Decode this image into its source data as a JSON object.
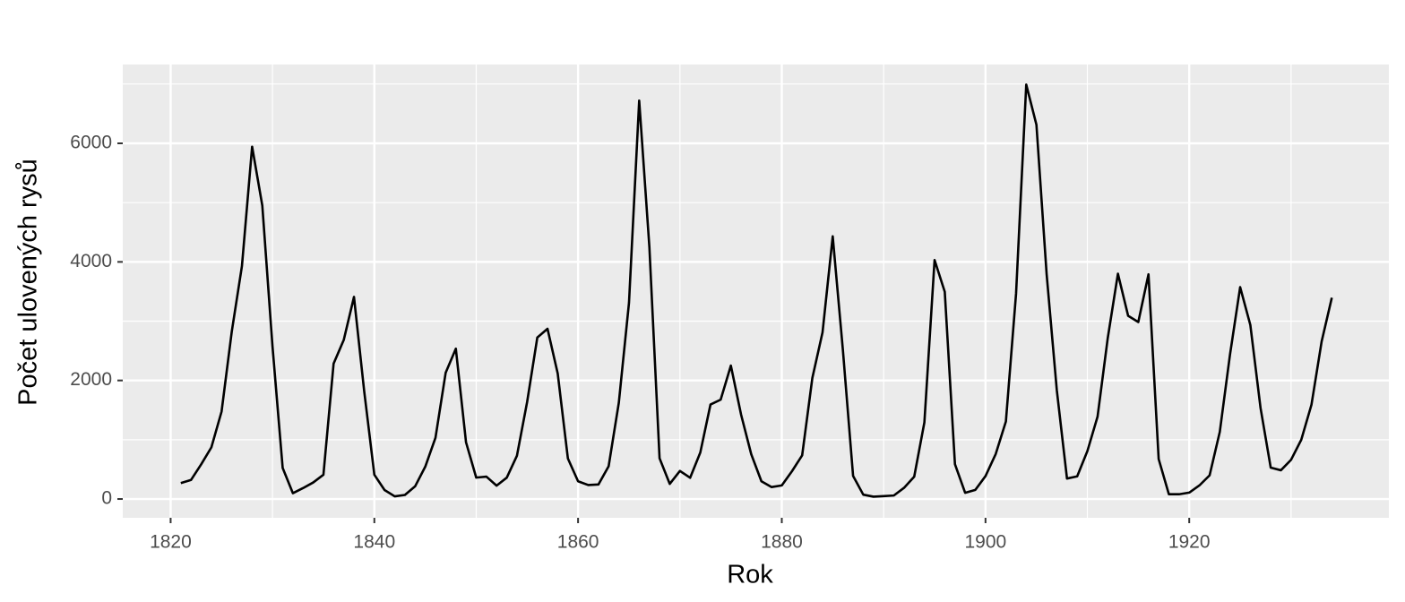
{
  "chart_data": {
    "type": "line",
    "x_label": "Rok",
    "y_label": "Počet ulovených rysů",
    "x": [
      1821,
      1822,
      1823,
      1824,
      1825,
      1826,
      1827,
      1828,
      1829,
      1830,
      1831,
      1832,
      1833,
      1834,
      1835,
      1836,
      1837,
      1838,
      1839,
      1840,
      1841,
      1842,
      1843,
      1844,
      1845,
      1846,
      1847,
      1848,
      1849,
      1850,
      1851,
      1852,
      1853,
      1854,
      1855,
      1856,
      1857,
      1858,
      1859,
      1860,
      1861,
      1862,
      1863,
      1864,
      1865,
      1866,
      1867,
      1868,
      1869,
      1870,
      1871,
      1872,
      1873,
      1874,
      1875,
      1876,
      1877,
      1878,
      1879,
      1880,
      1881,
      1882,
      1883,
      1884,
      1885,
      1886,
      1887,
      1888,
      1889,
      1890,
      1891,
      1892,
      1893,
      1894,
      1895,
      1896,
      1897,
      1898,
      1899,
      1900,
      1901,
      1902,
      1903,
      1904,
      1905,
      1906,
      1907,
      1908,
      1909,
      1910,
      1911,
      1912,
      1913,
      1914,
      1915,
      1916,
      1917,
      1918,
      1919,
      1920,
      1921,
      1922,
      1923,
      1924,
      1925,
      1926,
      1927,
      1928,
      1929,
      1930,
      1931,
      1932,
      1933,
      1934
    ],
    "values": [
      269,
      321,
      585,
      871,
      1475,
      2821,
      3928,
      5943,
      4950,
      2577,
      523,
      98,
      184,
      279,
      409,
      2285,
      2685,
      3409,
      1824,
      409,
      151,
      45,
      68,
      213,
      546,
      1033,
      2129,
      2536,
      957,
      361,
      377,
      225,
      360,
      731,
      1638,
      2725,
      2871,
      2119,
      684,
      299,
      236,
      245,
      552,
      1623,
      3311,
      6721,
      4254,
      687,
      255,
      473,
      358,
      784,
      1594,
      1676,
      2251,
      1426,
      756,
      299,
      201,
      229,
      469,
      736,
      2042,
      2811,
      4431,
      2511,
      389,
      73,
      39,
      49,
      59,
      188,
      377,
      1292,
      4031,
      3495,
      587,
      105,
      153,
      387,
      758,
      1307,
      3465,
      6991,
      6313,
      3794,
      1836,
      345,
      382,
      808,
      1388,
      2713,
      3800,
      3091,
      2985,
      3790,
      674,
      81,
      80,
      108,
      229,
      399,
      1132,
      2432,
      3574,
      2935,
      1537,
      529,
      485,
      662,
      1000,
      1590,
      2657,
      3396
    ],
    "color": "#000000",
    "xlim": [
      1815.3,
      1939.6
    ],
    "xticks": [
      1820,
      1840,
      1860,
      1880,
      1900,
      1920
    ],
    "ylim": [
      -317,
      7330
    ],
    "yticks": [
      0,
      2000,
      4000,
      6000
    ],
    "grid": true
  }
}
